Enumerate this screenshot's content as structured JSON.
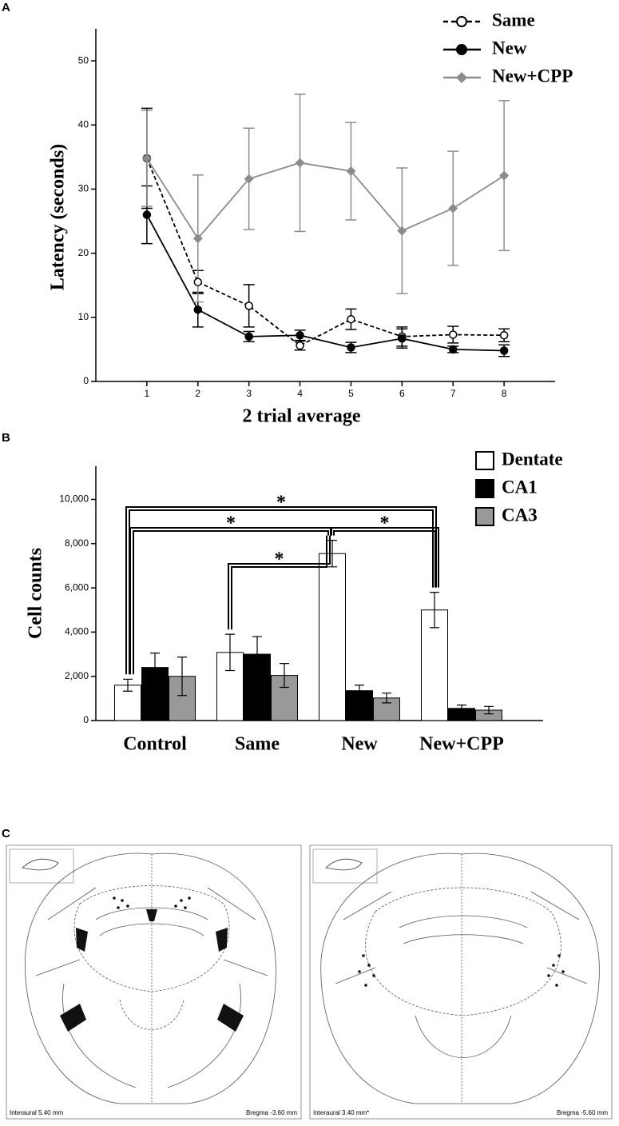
{
  "chart_data": [
    {
      "type": "line",
      "panel_label": "A",
      "xlabel": "2 trial average",
      "ylabel": "Latency (seconds)",
      "x": [
        1,
        2,
        3,
        4,
        5,
        6,
        7,
        8
      ],
      "xlim": [
        0,
        9
      ],
      "xticks": [
        1,
        2,
        3,
        4,
        5,
        6,
        7,
        8
      ],
      "ylim": [
        0,
        55
      ],
      "yticks": [
        0,
        10,
        20,
        30,
        40,
        50
      ],
      "legend": "upper right",
      "series": [
        {
          "name": "Same",
          "color": "#000000",
          "marker": "open-circle",
          "dashed": true,
          "values": [
            34.8,
            15.5,
            11.8,
            5.6,
            9.7,
            7.0,
            7.3,
            7.2
          ],
          "errors": [
            7.8,
            1.8,
            3.3,
            0.7,
            1.6,
            1.5,
            1.3,
            1.0
          ]
        },
        {
          "name": "New",
          "color": "#000000",
          "marker": "circle",
          "dashed": false,
          "values": [
            26.0,
            11.2,
            7.0,
            7.2,
            5.3,
            6.7,
            5.0,
            4.8
          ],
          "errors": [
            4.5,
            2.7,
            0.8,
            0.8,
            0.8,
            1.5,
            0.5,
            0.9
          ]
        },
        {
          "name": "New+CPP",
          "color": "#8c8c8c",
          "marker": "diamond",
          "dashed": false,
          "values": [
            34.8,
            22.3,
            31.6,
            34.1,
            32.8,
            23.5,
            27.0,
            32.1
          ],
          "errors": [
            7.5,
            9.9,
            7.9,
            10.7,
            7.6,
            9.8,
            8.9,
            11.7
          ]
        }
      ]
    },
    {
      "type": "grouped-bar",
      "panel_label": "B",
      "ylabel": "Cell counts",
      "categories": [
        "Control",
        "Same",
        "New",
        "New+CPP"
      ],
      "ylim": [
        0,
        11500
      ],
      "yticks": [
        0,
        {
          "value": 2000,
          "label": "2,000"
        },
        {
          "value": 4000,
          "label": "4,000"
        },
        {
          "value": 6000,
          "label": "6,000"
        },
        {
          "value": 8000,
          "label": "8,000"
        },
        {
          "value": 10000,
          "label": "10,000"
        }
      ],
      "legend": "upper right",
      "series": [
        {
          "name": "Dentate",
          "color": "#ffffff",
          "values": [
            1600,
            3080,
            7550,
            5000
          ],
          "errors": [
            270,
            820,
            600,
            800
          ]
        },
        {
          "name": "CA1",
          "color": "#000000",
          "values": [
            2400,
            3000,
            1350,
            550
          ],
          "errors": [
            650,
            800,
            250,
            150
          ]
        },
        {
          "name": "CA3",
          "color": "#999999",
          "values": [
            2000,
            2040,
            1020,
            470
          ],
          "errors": [
            870,
            540,
            220,
            170
          ]
        }
      ],
      "significance": [
        {
          "from": 0,
          "to": 3,
          "label": "*"
        },
        {
          "from": 0,
          "to": 2,
          "label": "*"
        },
        {
          "from": 1,
          "to": 2,
          "label": "*"
        },
        {
          "from": 2,
          "to": 3,
          "label": "*"
        }
      ]
    }
  ],
  "atlas": {
    "panel_label": "C",
    "sections": [
      {
        "left_label": "Interaural 5.40 mm",
        "right_label": "Bregma -3.60 mm"
      },
      {
        "left_label": "Interaural 3.40 mm*",
        "right_label": "Bregma -5.60 mm"
      }
    ]
  }
}
